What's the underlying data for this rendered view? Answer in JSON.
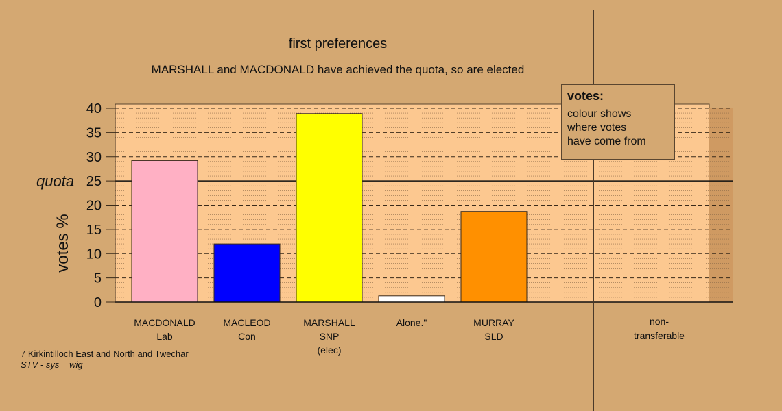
{
  "chart_data": {
    "type": "bar",
    "title": "first preferences",
    "subtitle": "MARSHALL and MACDONALD have achieved the quota, so are elected",
    "ylabel": "votes %",
    "ylim": [
      0,
      40
    ],
    "yticks": [
      "0",
      "5",
      "10",
      "15",
      "20",
      "25",
      "30",
      "35",
      "40"
    ],
    "quota": 25,
    "quota_label": "quota",
    "grid": "dashed",
    "bars": [
      {
        "label_lines": [
          "MACDONALD",
          "Lab"
        ],
        "value": 29.2,
        "color": "#ffb0c4"
      },
      {
        "label_lines": [
          "MACLEOD",
          "Con"
        ],
        "value": 12.0,
        "color": "#0000ff"
      },
      {
        "label_lines": [
          "MARSHALL",
          "SNP",
          "(elec)"
        ],
        "value": 38.9,
        "color": "#ffff00"
      },
      {
        "label_lines": [
          "Alone.\""
        ],
        "value": 1.3,
        "color": "#ffffff"
      },
      {
        "label_lines": [
          "MURRAY",
          "SLD"
        ],
        "value": 18.7,
        "color": "#ff9000"
      }
    ],
    "extra_category": {
      "label_lines": [
        "non-",
        "transferable"
      ],
      "value": 0
    }
  },
  "legend": {
    "title": "votes:",
    "lines": [
      "colour shows",
      "where votes",
      "have come from"
    ]
  },
  "footer": {
    "constituency": "7 Kirkintilloch East and North and Twechar",
    "system": "STV - sys = wig"
  },
  "colors": {
    "background": "#d4a872",
    "plot_area": "#fcc890"
  }
}
